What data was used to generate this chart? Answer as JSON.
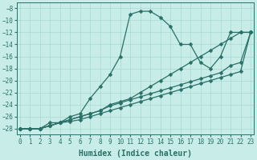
{
  "xlabel": "Humidex (Indice chaleur)",
  "background_color": "#c8ece8",
  "grid_color": "#a8d8d0",
  "line_color": "#2a7068",
  "xlim": [
    -0.3,
    23.3
  ],
  "ylim": [
    -29.0,
    -7.0
  ],
  "yticks": [
    -28,
    -26,
    -24,
    -22,
    -20,
    -18,
    -16,
    -14,
    -12,
    -10,
    -8
  ],
  "xticks": [
    0,
    1,
    2,
    3,
    4,
    5,
    6,
    7,
    8,
    9,
    10,
    11,
    12,
    13,
    14,
    15,
    16,
    17,
    18,
    19,
    20,
    21,
    22,
    23
  ],
  "curves": [
    {
      "x": [
        0,
        1,
        2,
        3,
        4,
        5,
        6,
        7,
        8,
        9,
        10,
        11,
        12,
        13,
        14,
        15,
        16,
        17,
        18,
        19,
        20,
        21,
        22,
        23
      ],
      "y": [
        -28,
        -28,
        -28,
        -27,
        -27,
        -26,
        -25.5,
        -23,
        -21,
        -19,
        -16,
        -9,
        -8.5,
        -8.5,
        -9.5,
        -11,
        -14,
        -14,
        -17,
        -18,
        -16,
        -12,
        -12,
        -12
      ]
    },
    {
      "x": [
        0,
        1,
        2,
        3,
        4,
        5,
        6,
        7,
        8,
        9,
        10,
        11,
        12,
        13,
        14,
        15,
        16,
        17,
        18,
        19,
        20,
        21,
        22,
        23
      ],
      "y": [
        -28,
        -28,
        -28,
        -27.5,
        -27,
        -26.5,
        -26,
        -25.5,
        -25,
        -24,
        -23.5,
        -23,
        -22,
        -21,
        -20,
        -19,
        -18,
        -17,
        -16,
        -15,
        -14,
        -13,
        -12,
        -12
      ]
    },
    {
      "x": [
        0,
        1,
        2,
        3,
        4,
        5,
        6,
        7,
        8,
        9,
        10,
        11,
        12,
        13,
        14,
        15,
        16,
        17,
        18,
        19,
        20,
        21,
        22,
        23
      ],
      "y": [
        -28,
        -28,
        -28,
        -27.5,
        -27,
        -26.5,
        -26,
        -25.5,
        -25,
        -24.2,
        -23.7,
        -23.2,
        -22.7,
        -22.2,
        -21.7,
        -21.2,
        -20.7,
        -20.2,
        -19.7,
        -19.2,
        -18.7,
        -17.5,
        -17,
        -12
      ]
    },
    {
      "x": [
        0,
        1,
        2,
        3,
        4,
        5,
        6,
        7,
        8,
        9,
        10,
        11,
        12,
        13,
        14,
        15,
        16,
        17,
        18,
        19,
        20,
        21,
        22,
        23
      ],
      "y": [
        -28,
        -28,
        -28,
        -27.5,
        -27,
        -26.8,
        -26.5,
        -26,
        -25.5,
        -25,
        -24.5,
        -24,
        -23.5,
        -23,
        -22.5,
        -22,
        -21.5,
        -21,
        -20.5,
        -20,
        -19.5,
        -19,
        -18.5,
        -12
      ]
    }
  ],
  "markersize": 2.5,
  "linewidth": 0.9,
  "xlabel_fontsize": 7,
  "tick_fontsize": 5.5
}
